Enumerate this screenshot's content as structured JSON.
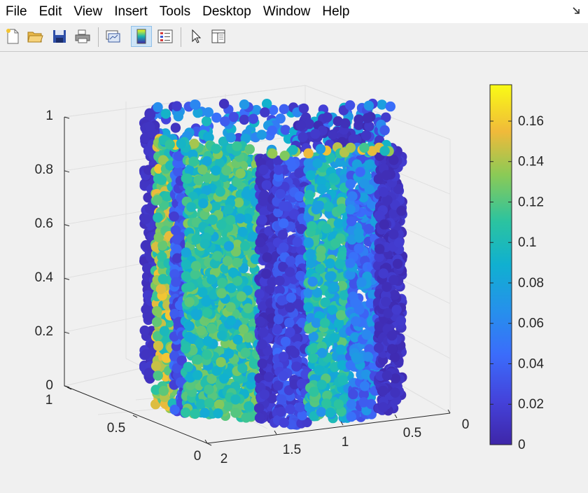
{
  "menu": {
    "items": [
      "File",
      "Edit",
      "View",
      "Insert",
      "Tools",
      "Desktop",
      "Window",
      "Help"
    ]
  },
  "toolbar": {
    "buttons": [
      {
        "name": "new-figure-icon"
      },
      {
        "name": "open-file-icon"
      },
      {
        "name": "save-icon"
      },
      {
        "name": "print-icon"
      },
      {
        "name": "link-plot-icon"
      },
      {
        "name": "colorbar-icon",
        "active": true
      },
      {
        "name": "legend-icon"
      },
      {
        "name": "edit-plot-pointer-icon"
      },
      {
        "name": "property-inspector-icon"
      }
    ]
  },
  "colors": {
    "parula_low": "#3e26a8",
    "parula_high": "#f9fb15"
  },
  "chart_data": {
    "type": "scatter3",
    "z_ticks": [
      "0",
      "0.2",
      "0.4",
      "0.6",
      "0.8",
      "1"
    ],
    "x_ticks": [
      "0",
      "0.5",
      "1"
    ],
    "y_ticks": [
      "2",
      "1.5",
      "1",
      "0.5",
      "0"
    ],
    "zlim": [
      0,
      1
    ],
    "colorbar": {
      "ticks": [
        "0",
        "0.02",
        "0.04",
        "0.06",
        "0.08",
        "0.1",
        "0.12",
        "0.14",
        "0.16"
      ],
      "clim": [
        0,
        0.178
      ]
    },
    "grid": true,
    "box": true,
    "shape": "hollow square column point cloud (two nested faces with an inner opening)"
  }
}
